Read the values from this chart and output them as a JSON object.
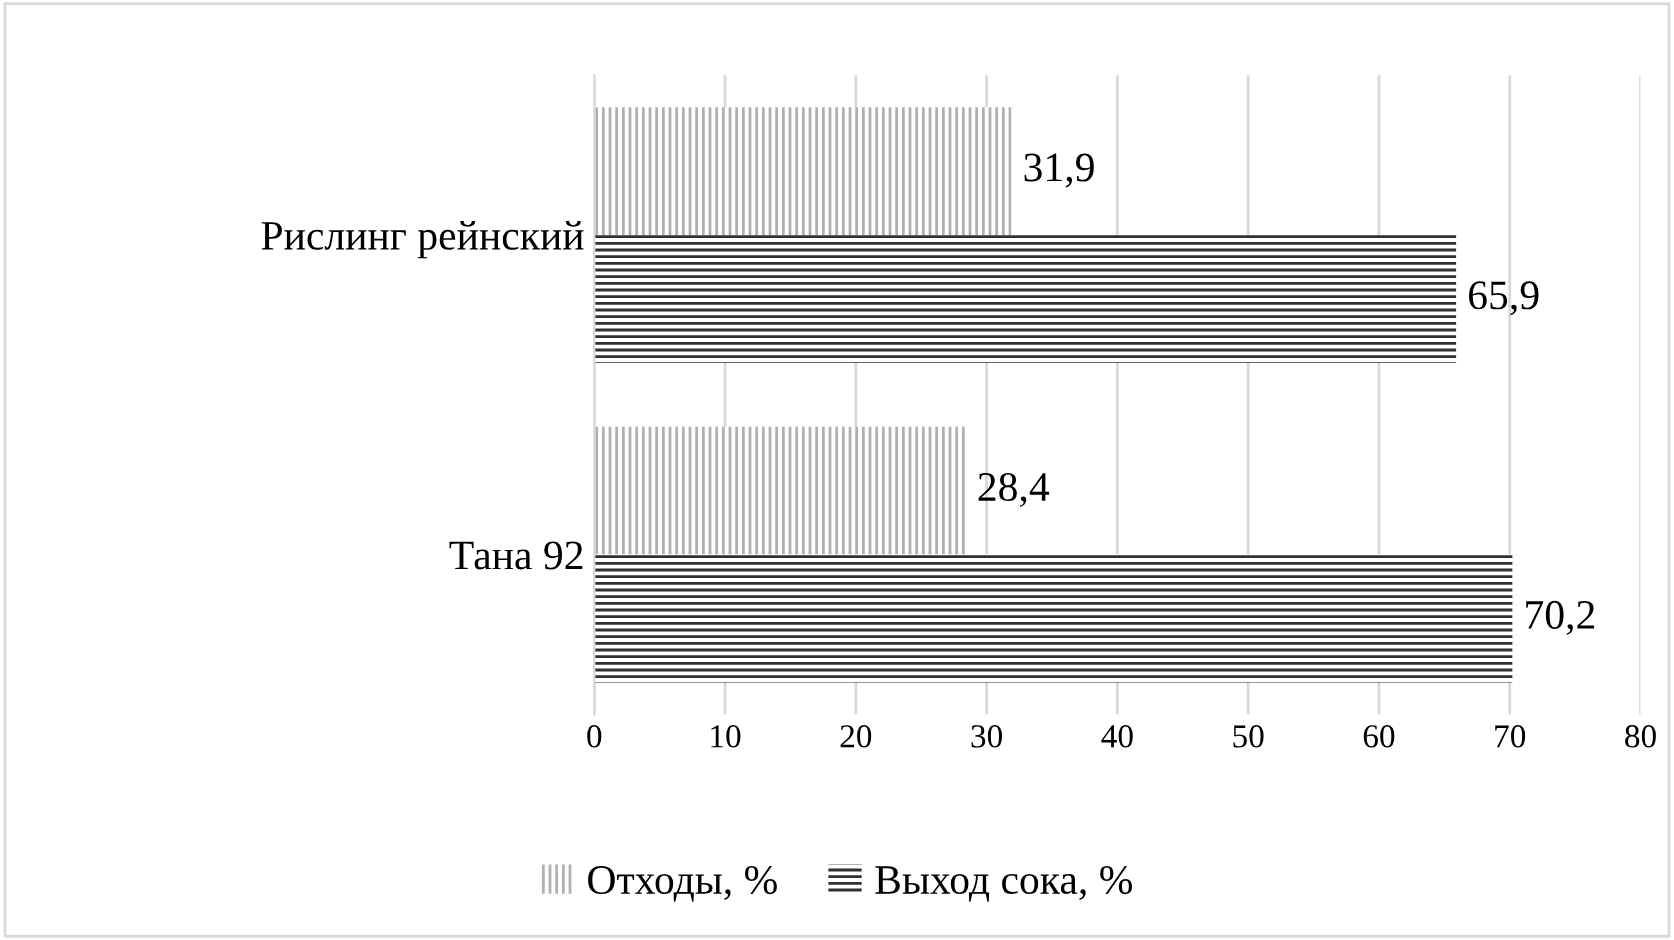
{
  "chart_data": {
    "type": "bar",
    "orientation": "horizontal",
    "categories": [
      "Рислинг рейнский",
      "Тана 92"
    ],
    "series": [
      {
        "name": "Отходы, %",
        "color": "#b0b0b0",
        "values": [
          31.9,
          28.4
        ],
        "value_labels": [
          "31,9",
          "28,4"
        ]
      },
      {
        "name": "Выход сока, %",
        "color": "#303030",
        "values": [
          65.9,
          70.2
        ],
        "value_labels": [
          "65,9",
          "70,2"
        ]
      }
    ],
    "xlim": [
      0,
      80
    ],
    "xticks": [
      0,
      10,
      20,
      30,
      40,
      50,
      60,
      70,
      80
    ],
    "grid": "x",
    "legend": "bottom"
  }
}
